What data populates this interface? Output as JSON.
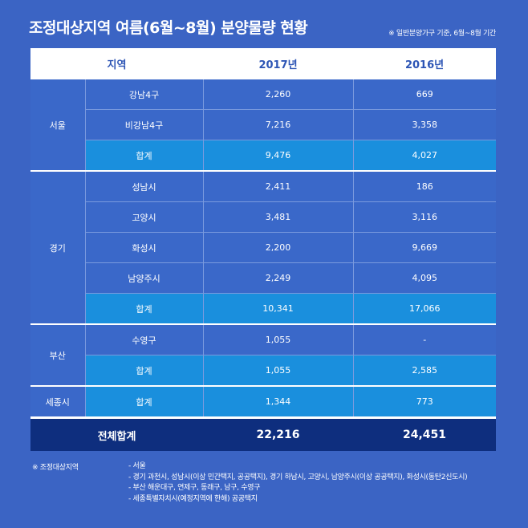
{
  "title": "조정대상지역 여름(6월~8월) 분양물량 현황",
  "subtitle": "※ 일반분양가구 기준, 6월~8월 기간",
  "table": {
    "headers": [
      "지역",
      "2017년",
      "2016년"
    ],
    "regions": [
      {
        "name": "서울",
        "rows": [
          {
            "district": "강남4구",
            "y2017": "2,260",
            "y2016": "669",
            "is_subtotal": false
          },
          {
            "district": "비강남4구",
            "y2017": "7,216",
            "y2016": "3,358",
            "is_subtotal": false
          },
          {
            "district": "합계",
            "y2017": "9,476",
            "y2016": "4,027",
            "is_subtotal": true
          }
        ]
      },
      {
        "name": "경기",
        "rows": [
          {
            "district": "성남시",
            "y2017": "2,411",
            "y2016": "186",
            "is_subtotal": false
          },
          {
            "district": "고양시",
            "y2017": "3,481",
            "y2016": "3,116",
            "is_subtotal": false
          },
          {
            "district": "화성시",
            "y2017": "2,200",
            "y2016": "9,669",
            "is_subtotal": false
          },
          {
            "district": "남양주시",
            "y2017": "2,249",
            "y2016": "4,095",
            "is_subtotal": false
          },
          {
            "district": "합계",
            "y2017": "10,341",
            "y2016": "17,066",
            "is_subtotal": true
          }
        ]
      },
      {
        "name": "부산",
        "rows": [
          {
            "district": "수영구",
            "y2017": "1,055",
            "y2016": "-",
            "is_subtotal": false
          },
          {
            "district": "합계",
            "y2017": "1,055",
            "y2016": "2,585",
            "is_subtotal": true
          }
        ]
      },
      {
        "name": "세종시",
        "rows": [
          {
            "district": "합계",
            "y2017": "1,344",
            "y2016": "773",
            "is_subtotal": true
          }
        ]
      }
    ],
    "total": {
      "label": "전체합계",
      "y2017": "22,216",
      "y2016": "24,451"
    }
  },
  "notes": {
    "label": "※ 조정대상지역",
    "items": [
      "- 서울",
      "- 경기 과천시, 성남시(이상 민간택지, 공공택지), 경기 하남시, 고양시, 남양주시(이상 공공택지), 화성시(동탄2신도시)",
      "- 부산 해운대구, 연제구, 동래구, 남구, 수영구",
      "- 세종특별자치시(예정지역에 한해) 공공택지"
    ]
  },
  "colors": {
    "background": "#3b64c4",
    "cell": "#3a68c9",
    "subtotal": "#1a8fdd",
    "total": "#0e2e7e",
    "header_text": "#2d55b5"
  }
}
